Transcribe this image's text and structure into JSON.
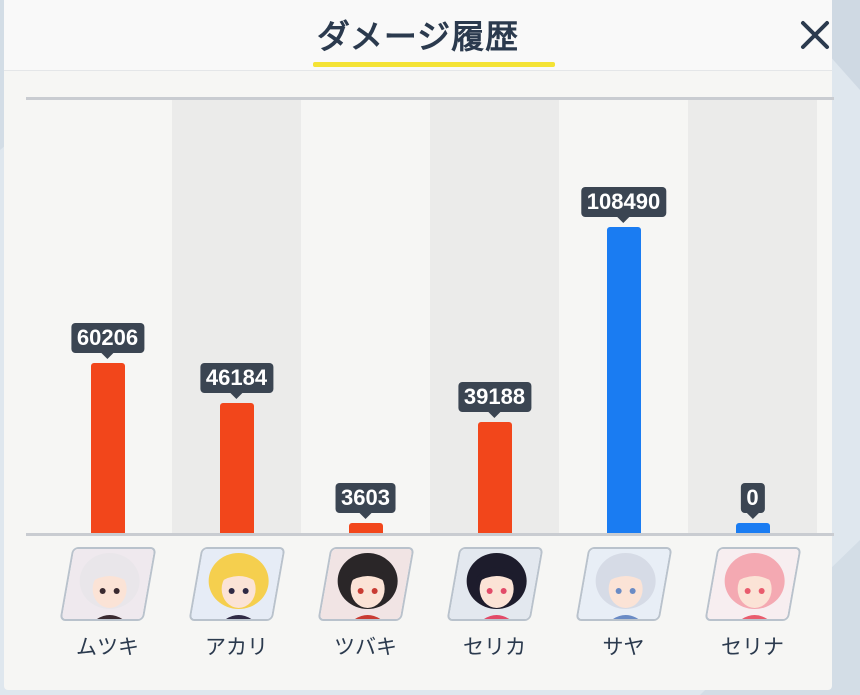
{
  "header": {
    "title": "ダメージ履歴"
  },
  "chart_data": {
    "type": "bar",
    "categories": [
      "ムツキ",
      "アカリ",
      "ツバキ",
      "セリカ",
      "サヤ",
      "セリナ"
    ],
    "values": [
      60206,
      46184,
      3603,
      39188,
      108490,
      0
    ],
    "value_labels": [
      "60206",
      "46184",
      "3603",
      "39188",
      "108490",
      "0"
    ],
    "bar_colors": [
      "#f2461b",
      "#f2461b",
      "#f2461b",
      "#f2461b",
      "#1a7cf2",
      "#1a7cf2"
    ],
    "ylim": [
      0,
      124000
    ],
    "grid": false,
    "title": "",
    "xlabel": "",
    "ylabel": ""
  },
  "characters": [
    {
      "name": "ムツキ",
      "hair": "#e9e6ea",
      "accent": "#3a2a30",
      "bg": "#efe9ee"
    },
    {
      "name": "アカリ",
      "hair": "#f5cf4e",
      "accent": "#2f2a45",
      "bg": "#e6ecf6"
    },
    {
      "name": "ツバキ",
      "hair": "#2a2628",
      "accent": "#c93b32",
      "bg": "#f1e4e4"
    },
    {
      "name": "セリカ",
      "hair": "#1d1c2c",
      "accent": "#e24a68",
      "bg": "#e3e8ef"
    },
    {
      "name": "サヤ",
      "hair": "#d6dbe6",
      "accent": "#6a8bc5",
      "bg": "#e8eef6"
    },
    {
      "name": "セリナ",
      "hair": "#f4a9b2",
      "accent": "#e95c6d",
      "bg": "#f7eef0"
    }
  ],
  "icons": {
    "close": "close-icon"
  },
  "colors": {
    "damage_red": "#f2461b",
    "damage_blue": "#1a7cf2",
    "label_bg": "#3b4552",
    "title_underline": "#f4e335"
  }
}
